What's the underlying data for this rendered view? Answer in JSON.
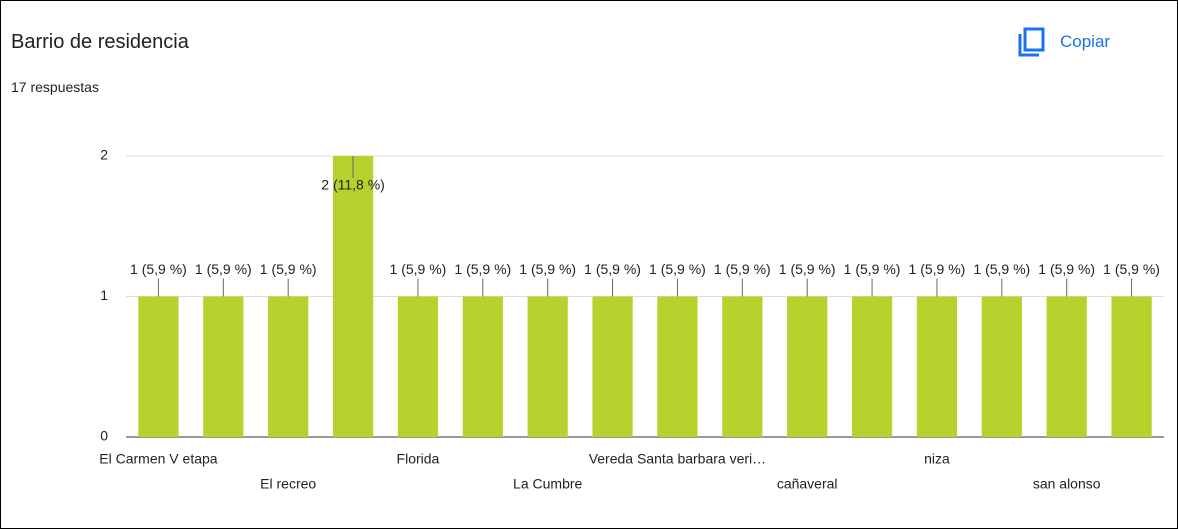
{
  "header": {
    "title": "Barrio de residencia",
    "subtitle": "17 respuestas",
    "button": "Copiar"
  },
  "chart_data": {
    "type": "bar",
    "categories": [
      "El Carmen V etapa",
      null,
      "El recreo",
      null,
      "Florida",
      null,
      "La Cumbre",
      null,
      "Vereda Santa barbara veri…",
      null,
      "cañaveral",
      null,
      "niza",
      null,
      "san alonso",
      null
    ],
    "values": [
      1,
      1,
      1,
      2,
      1,
      1,
      1,
      1,
      1,
      1,
      1,
      1,
      1,
      1,
      1,
      1
    ],
    "value_labels": [
      "1 (5,9 %)",
      "1 (5,9 %)",
      "1 (5,9 %)",
      "2 (11,8 %)",
      "1 (5,9 %)",
      "1 (5,9 %)",
      "1 (5,9 %)",
      "1 (5,9 %)",
      "1 (5,9 %)",
      "1 (5,9 %)",
      "1 (5,9 %)",
      "1 (5,9 %)",
      "1 (5,9 %)",
      "1 (5,9 %)",
      "1 (5,9 %)",
      "1 (5,9 %)"
    ],
    "color": "#b5d22d",
    "ylim": [
      0,
      2
    ],
    "yticks": [
      0,
      1,
      2
    ],
    "grid": true
  }
}
